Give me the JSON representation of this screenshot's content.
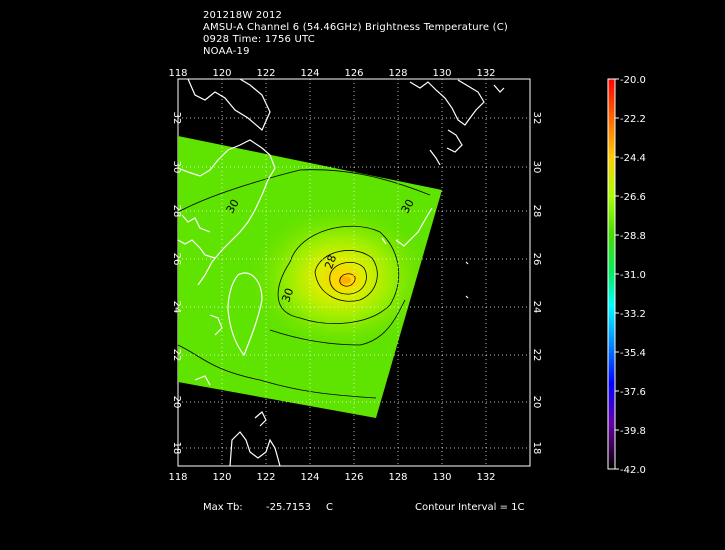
{
  "header": {
    "line1": "201218W 2012",
    "line2": "AMSU-A Channel 6 (54.46GHz) Brightness Temperature (C)",
    "line3": "0928 Time: 1756 UTC",
    "line4": "NOAA-19"
  },
  "map": {
    "lon_ticks": [
      "118",
      "120",
      "122",
      "124",
      "126",
      "128",
      "130",
      "132"
    ],
    "lat_ticks": [
      "18",
      "20",
      "22",
      "24",
      "26",
      "28",
      "30",
      "32"
    ],
    "contour_labels": [
      "30",
      "30",
      "28",
      "30"
    ]
  },
  "colorbar": {
    "labels": [
      "-20.0",
      "-22.2",
      "-24.4",
      "-26.6",
      "-28.8",
      "-31.0",
      "-33.2",
      "-35.4",
      "-37.6",
      "-39.8",
      "-42.0"
    ],
    "colors": [
      "#ff0000",
      "#ff8800",
      "#ffff00",
      "#88ff00",
      "#00dd00",
      "#00ffcc",
      "#00aaff",
      "#0000ff",
      "#6600cc",
      "#550066",
      "#ffffff"
    ]
  },
  "footer": {
    "max_label": "Max Tb:",
    "max_value": "-25.7153",
    "max_unit": "C",
    "contour": "Contour Interval = 1C"
  }
}
